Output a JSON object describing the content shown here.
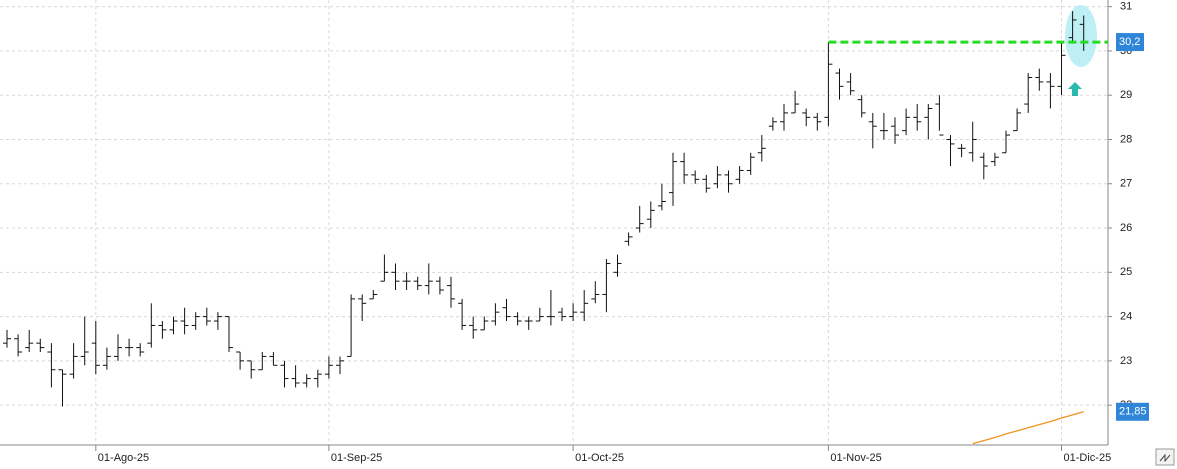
{
  "chart_data": {
    "type": "ohlc",
    "categories": [
      null,
      null,
      null,
      null,
      null,
      null,
      null,
      null,
      "01-Ago-25",
      null,
      null,
      null,
      null,
      null,
      null,
      null,
      null,
      null,
      null,
      null,
      null,
      null,
      null,
      null,
      null,
      null,
      null,
      null,
      null,
      "01-Sep-25",
      null,
      null,
      null,
      null,
      null,
      null,
      null,
      null,
      null,
      null,
      null,
      null,
      null,
      null,
      null,
      null,
      null,
      null,
      null,
      null,
      null,
      "01-Oct-25",
      null,
      null,
      null,
      null,
      null,
      null,
      null,
      null,
      null,
      null,
      null,
      null,
      null,
      null,
      null,
      null,
      null,
      null,
      null,
      null,
      null,
      null,
      "01-Nov-25",
      null,
      null,
      null,
      null,
      null,
      null,
      null,
      null,
      null,
      null,
      null,
      null,
      null,
      null,
      null,
      null,
      null,
      null,
      null,
      null,
      "01-Dic-25",
      null,
      null
    ],
    "ohlc": [
      [
        23.4,
        23.7,
        23.3,
        23.5
      ],
      [
        23.5,
        23.6,
        23.1,
        23.2
      ],
      [
        23.3,
        23.7,
        23.2,
        23.4
      ],
      [
        23.4,
        23.5,
        23.2,
        23.3
      ],
      [
        23.2,
        23.4,
        22.4,
        22.8
      ],
      [
        22.8,
        22.8,
        21.97,
        22.7
      ],
      [
        22.7,
        23.4,
        22.6,
        23.1
      ],
      [
        23.1,
        24.0,
        22.9,
        23.2
      ],
      [
        23.4,
        23.9,
        22.7,
        22.9
      ],
      [
        22.9,
        23.3,
        22.8,
        23.1
      ],
      [
        23.1,
        23.6,
        23.0,
        23.3
      ],
      [
        23.3,
        23.5,
        23.1,
        23.3
      ],
      [
        23.3,
        23.4,
        23.1,
        23.2
      ],
      [
        23.4,
        24.3,
        23.3,
        23.8
      ],
      [
        23.8,
        23.9,
        23.5,
        23.7
      ],
      [
        23.7,
        24.0,
        23.6,
        23.9
      ],
      [
        23.9,
        24.2,
        23.6,
        23.8
      ],
      [
        23.8,
        24.1,
        23.7,
        24.0
      ],
      [
        24.0,
        24.2,
        23.8,
        23.9
      ],
      [
        23.9,
        24.1,
        23.7,
        24.0
      ],
      [
        24.0,
        24.0,
        23.2,
        23.3
      ],
      [
        23.2,
        23.2,
        22.8,
        23.0
      ],
      [
        23.0,
        23.0,
        22.6,
        22.8
      ],
      [
        22.8,
        23.2,
        22.8,
        23.1
      ],
      [
        23.1,
        23.2,
        22.9,
        22.9
      ],
      [
        22.9,
        23.0,
        22.4,
        22.6
      ],
      [
        22.6,
        22.9,
        22.4,
        22.5
      ],
      [
        22.5,
        22.7,
        22.4,
        22.6
      ],
      [
        22.6,
        22.8,
        22.4,
        22.7
      ],
      [
        22.7,
        23.1,
        22.6,
        22.9
      ],
      [
        22.9,
        23.1,
        22.7,
        23.0
      ],
      [
        23.1,
        24.5,
        23.1,
        24.4
      ],
      [
        24.4,
        24.5,
        23.9,
        24.3
      ],
      [
        24.4,
        24.6,
        24.4,
        24.5
      ],
      [
        24.8,
        25.4,
        24.8,
        25.0
      ],
      [
        25.0,
        25.2,
        24.6,
        24.8
      ],
      [
        24.8,
        25.0,
        24.6,
        24.8
      ],
      [
        24.8,
        24.9,
        24.6,
        24.7
      ],
      [
        24.7,
        25.2,
        24.5,
        24.8
      ],
      [
        24.8,
        24.9,
        24.5,
        24.6
      ],
      [
        24.7,
        24.9,
        24.2,
        24.4
      ],
      [
        24.3,
        24.4,
        23.7,
        23.8
      ],
      [
        23.8,
        24.0,
        23.5,
        23.7
      ],
      [
        23.7,
        24.0,
        23.7,
        23.9
      ],
      [
        23.9,
        24.3,
        23.8,
        24.1
      ],
      [
        24.2,
        24.4,
        23.9,
        24.0
      ],
      [
        24.0,
        24.1,
        23.8,
        23.9
      ],
      [
        23.9,
        24.0,
        23.7,
        23.9
      ],
      [
        23.9,
        24.2,
        23.9,
        24.0
      ],
      [
        24.0,
        24.6,
        23.8,
        24.0
      ],
      [
        24.1,
        24.2,
        23.9,
        24.0
      ],
      [
        24.0,
        24.3,
        23.9,
        24.1
      ],
      [
        24.1,
        24.6,
        23.9,
        24.3
      ],
      [
        24.4,
        24.8,
        24.3,
        24.5
      ],
      [
        24.5,
        25.3,
        24.1,
        25.2
      ],
      [
        25.0,
        25.4,
        24.9,
        25.2
      ],
      [
        25.7,
        25.9,
        25.6,
        25.8
      ],
      [
        26.0,
        26.5,
        25.9,
        26.1
      ],
      [
        26.2,
        26.6,
        26.0,
        26.4
      ],
      [
        26.5,
        27.0,
        26.4,
        26.6
      ],
      [
        26.8,
        27.7,
        26.5,
        27.5
      ],
      [
        27.5,
        27.7,
        27.0,
        27.2
      ],
      [
        27.2,
        27.3,
        27.0,
        27.1
      ],
      [
        27.1,
        27.2,
        26.8,
        26.9
      ],
      [
        27.0,
        27.4,
        26.9,
        27.2
      ],
      [
        27.2,
        27.3,
        26.8,
        27.0
      ],
      [
        27.1,
        27.4,
        27.0,
        27.3
      ],
      [
        27.3,
        27.7,
        27.2,
        27.6
      ],
      [
        27.7,
        28.1,
        27.5,
        27.8
      ],
      [
        28.3,
        28.5,
        28.2,
        28.4
      ],
      [
        28.4,
        28.8,
        28.2,
        28.6
      ],
      [
        28.6,
        29.1,
        28.6,
        28.8
      ],
      [
        28.6,
        28.7,
        28.3,
        28.5
      ],
      [
        28.5,
        28.6,
        28.2,
        28.4
      ],
      [
        28.5,
        30.2,
        28.3,
        29.7
      ],
      [
        29.5,
        29.6,
        28.9,
        29.2
      ],
      [
        29.3,
        29.5,
        29.0,
        29.1
      ],
      [
        28.9,
        29.0,
        28.5,
        28.6
      ],
      [
        28.4,
        28.6,
        27.8,
        28.3
      ],
      [
        28.2,
        28.6,
        28.0,
        28.2
      ],
      [
        28.3,
        28.5,
        27.9,
        28.1
      ],
      [
        28.2,
        28.7,
        28.1,
        28.5
      ],
      [
        28.5,
        28.8,
        28.2,
        28.4
      ],
      [
        28.5,
        28.8,
        28.0,
        28.7
      ],
      [
        28.8,
        29.0,
        28.2,
        28.1
      ],
      [
        28.0,
        28.1,
        27.4,
        27.9
      ],
      [
        27.8,
        27.9,
        27.6,
        27.8
      ],
      [
        27.7,
        28.4,
        27.5,
        28.0
      ],
      [
        27.6,
        27.7,
        27.1,
        27.4
      ],
      [
        27.5,
        27.7,
        27.4,
        27.6
      ],
      [
        27.7,
        28.2,
        27.7,
        28.1
      ],
      [
        28.2,
        28.7,
        28.2,
        28.6
      ],
      [
        28.8,
        29.5,
        28.6,
        29.4
      ],
      [
        29.4,
        29.6,
        29.1,
        29.3
      ],
      [
        29.3,
        29.5,
        28.7,
        29.2
      ],
      [
        29.2,
        30.2,
        29.0,
        29.9
      ],
      [
        30.3,
        30.9,
        30.2,
        30.7
      ],
      [
        30.6,
        30.8,
        30.0,
        30.2
      ]
    ],
    "bar_color": "#111111",
    "series": [
      {
        "color": "#f0921e",
        "last_label": "21,85",
        "values": [
          null,
          null,
          null,
          null,
          null,
          null,
          null,
          null,
          null,
          null,
          null,
          null,
          null,
          null,
          null,
          null,
          null,
          null,
          null,
          null,
          null,
          null,
          null,
          null,
          null,
          null,
          null,
          null,
          null,
          null,
          null,
          null,
          null,
          null,
          null,
          null,
          null,
          null,
          null,
          null,
          null,
          null,
          null,
          null,
          null,
          null,
          null,
          null,
          null,
          null,
          null,
          null,
          null,
          null,
          null,
          null,
          null,
          null,
          null,
          null,
          null,
          null,
          null,
          null,
          null,
          null,
          null,
          null,
          null,
          null,
          null,
          null,
          null,
          null,
          null,
          null,
          null,
          null,
          null,
          null,
          null,
          null,
          null,
          null,
          null,
          null,
          null,
          21.13,
          21.2,
          21.27,
          21.35,
          21.42,
          21.49,
          21.56,
          21.63,
          21.71,
          21.78,
          21.85
        ]
      }
    ],
    "level": {
      "value": 30.2,
      "label": "30,2",
      "color": "#22dd22"
    },
    "ylim": [
      21.1,
      31.15
    ],
    "yticks": [
      22,
      23,
      24,
      25,
      26,
      27,
      28,
      29,
      30,
      31
    ],
    "grid": true
  }
}
